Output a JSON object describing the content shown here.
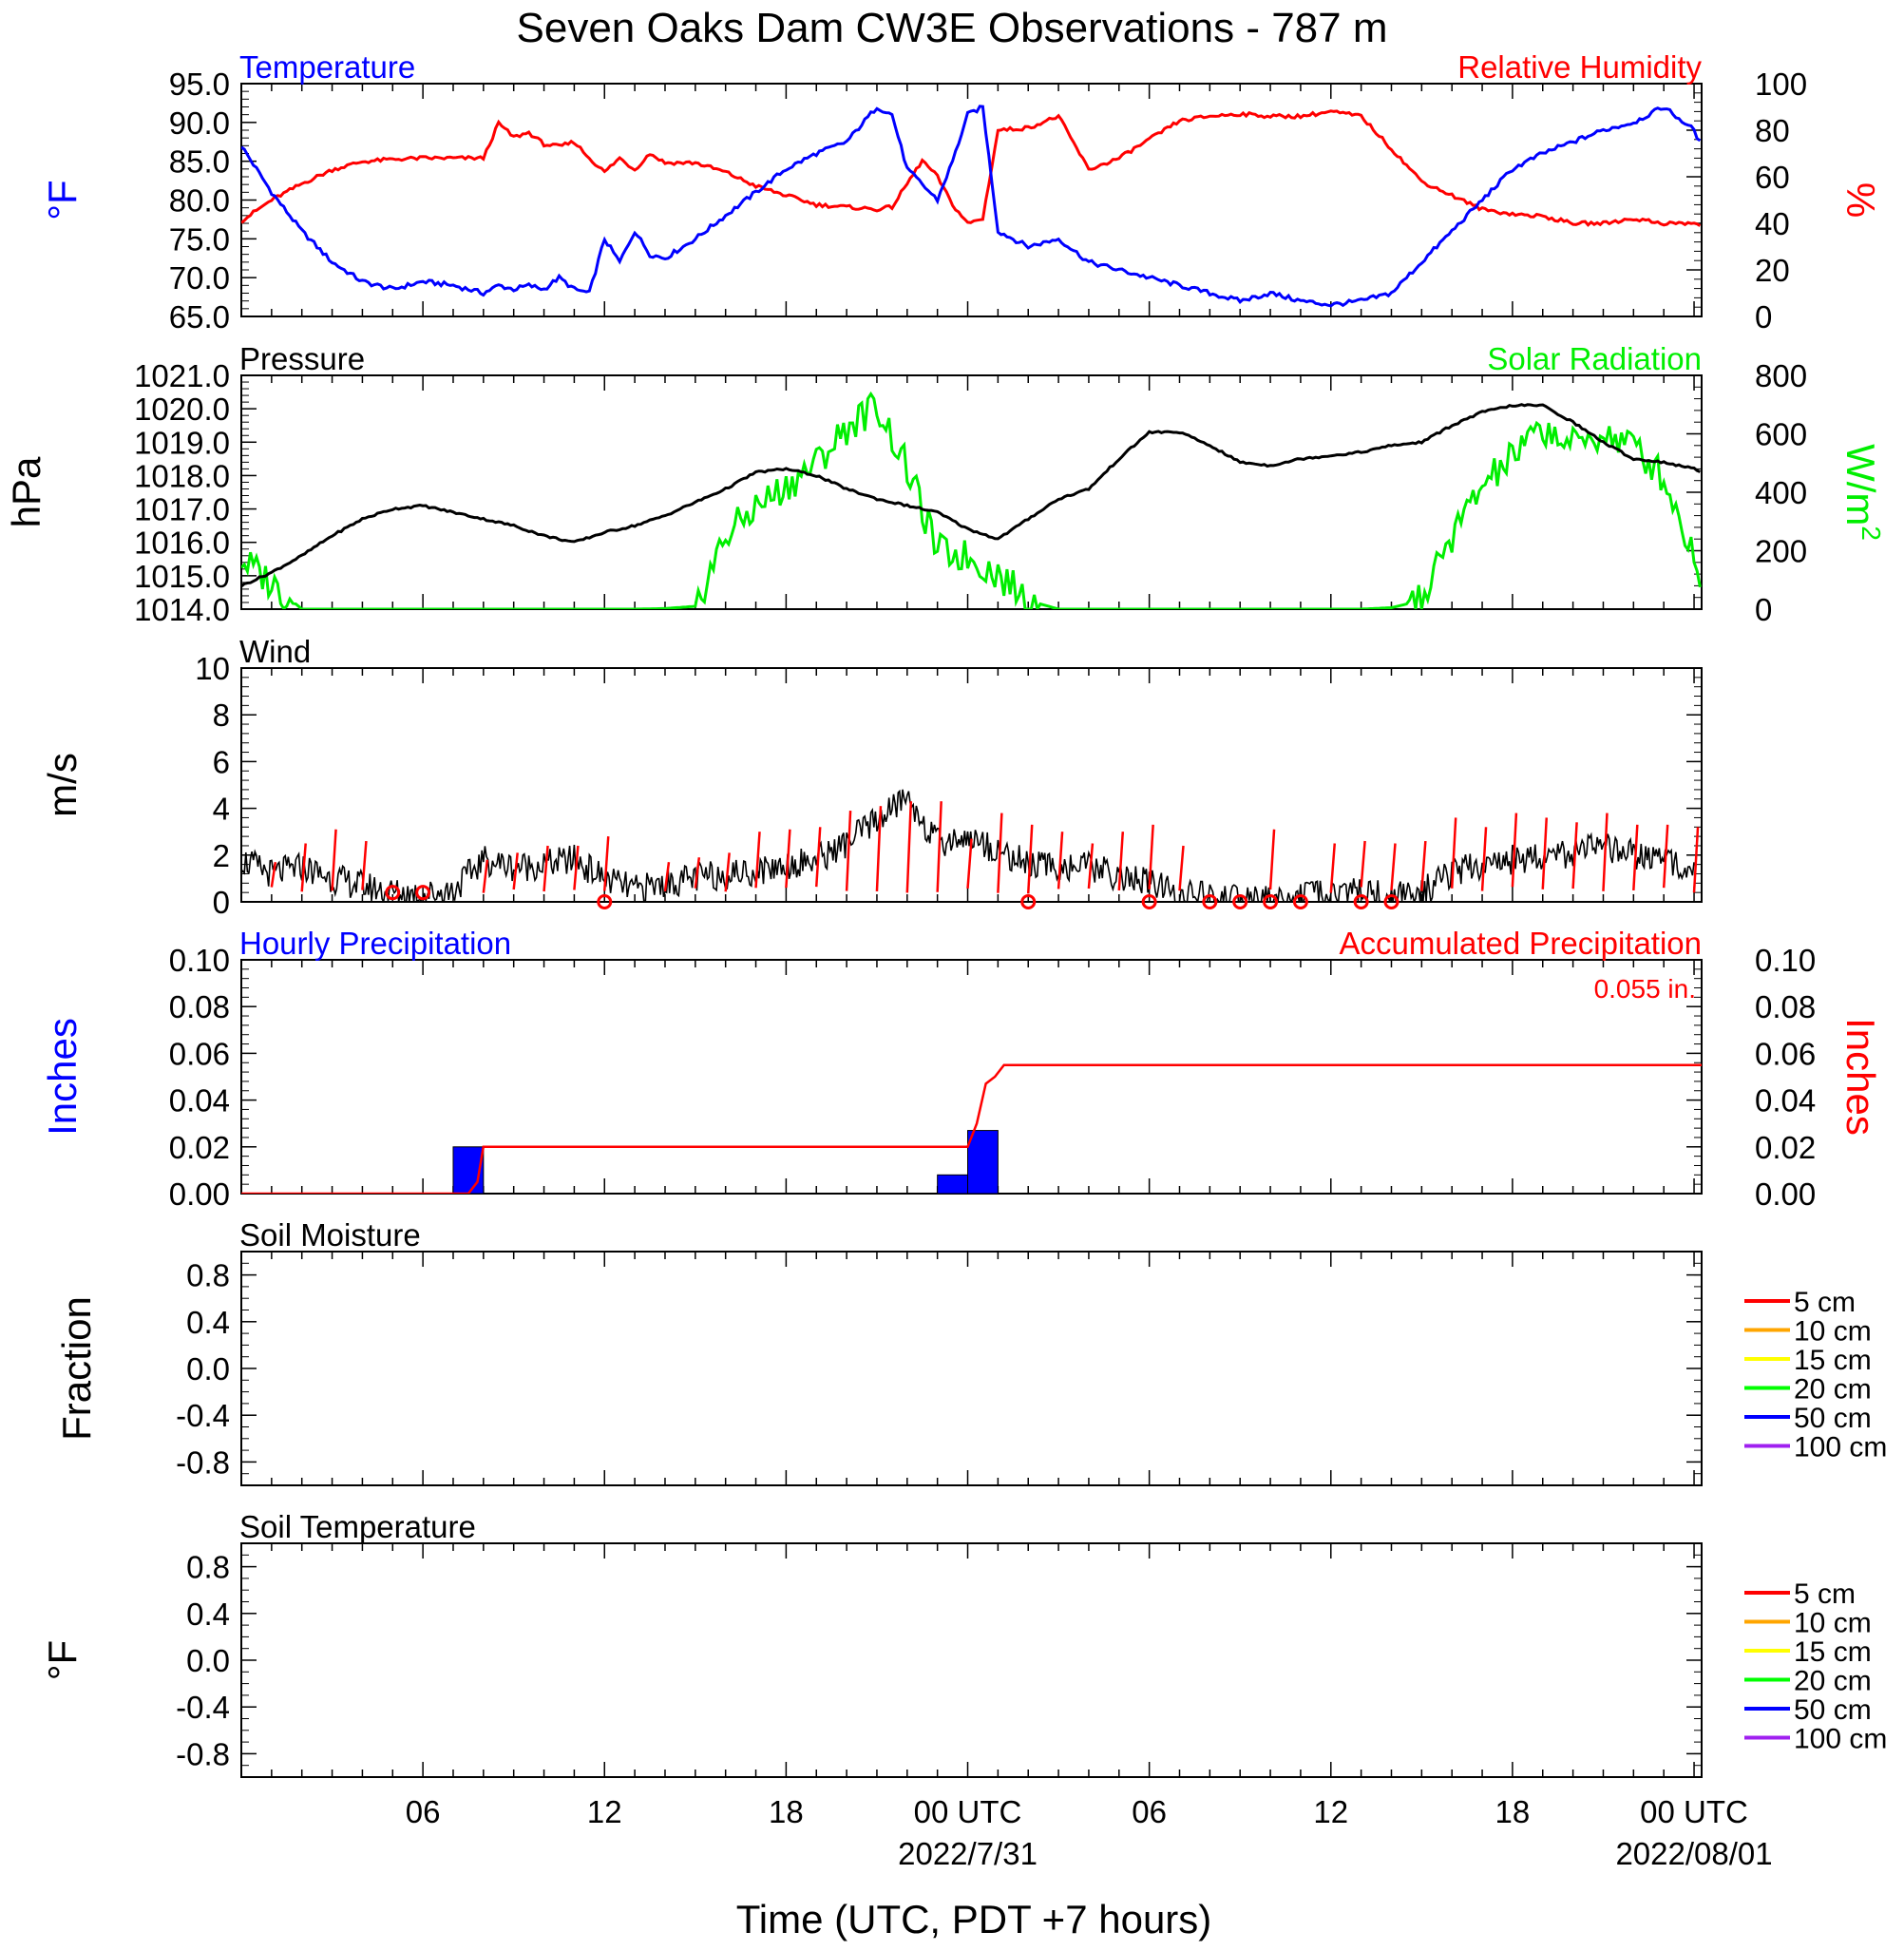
{
  "figure": {
    "title": "Seven Oaks Dam CW3E Observations - 787 m",
    "x_axis_title": "Time (UTC, PDT +7 hours)",
    "x_tick_labels": [
      "06",
      "12",
      "18",
      "00 UTC",
      "06",
      "12",
      "18",
      "00 UTC"
    ],
    "x_date_labels": [
      "2022/7/31",
      "2022/08/01"
    ]
  },
  "colors": {
    "temperature": "#0000ff",
    "humidity": "#ff0000",
    "pressure": "#000000",
    "solar": "#00ee00",
    "wind": "#000000",
    "gust": "#ff0000",
    "hourly_precip": "#0000ff",
    "accum_precip": "#ff0000"
  },
  "chart_data": [
    {
      "id": "temp_rh",
      "type": "line",
      "left_title": "Temperature",
      "right_title": "Relative Humidity",
      "ylabel_left": "°F",
      "ylabel_right": "%",
      "ylim_left": [
        65,
        95
      ],
      "ylim_right": [
        0,
        100
      ],
      "yticks_left": [
        "95.0",
        "90.0",
        "85.0",
        "80.0",
        "75.0",
        "70.0",
        "65.0"
      ],
      "yticks_right": [
        "100",
        "80",
        "60",
        "40",
        "20",
        "0"
      ],
      "x_hours": [
        0,
        1,
        2,
        3,
        4,
        5,
        6,
        7,
        8,
        8.5,
        9,
        9.5,
        10,
        10.5,
        11,
        11.5,
        12,
        12.5,
        13,
        13.5,
        14,
        15,
        16,
        17,
        18,
        19,
        20,
        21,
        21.5,
        22,
        22.5,
        23,
        23.5,
        24,
        24.5,
        25,
        26,
        27,
        28,
        29,
        30,
        31,
        32,
        33,
        34,
        35,
        36,
        37,
        38,
        39,
        40,
        41,
        42,
        43,
        44,
        45,
        46,
        47,
        48,
        48.25
      ],
      "series": [
        {
          "name": "Temperature",
          "axis": "left",
          "values": [
            87,
            81,
            76,
            72,
            69.5,
            68.5,
            69.5,
            69,
            68,
            69,
            68.5,
            69,
            68.5,
            70,
            68.5,
            68,
            75,
            72,
            76,
            73,
            72.5,
            75,
            78,
            81,
            84,
            86,
            87.5,
            92,
            91,
            84,
            82,
            80,
            85,
            91,
            92,
            76,
            74,
            75,
            72,
            71,
            70,
            69,
            68,
            67,
            68,
            67,
            66.5,
            67,
            68,
            72,
            76,
            80,
            84,
            86,
            87.5,
            89,
            90,
            92,
            89,
            87
          ]
        },
        {
          "name": "Relative Humidity",
          "axis": "right",
          "values": [
            41,
            50,
            57,
            63,
            66.5,
            67.5,
            68,
            68,
            68,
            83,
            77,
            79,
            74,
            73,
            75,
            68,
            62,
            68,
            63,
            70,
            66,
            66,
            62,
            56,
            52,
            48,
            47,
            46,
            47,
            57,
            67,
            60,
            48,
            40,
            42,
            80,
            81,
            86,
            63,
            68,
            76,
            84,
            86,
            87,
            86,
            86,
            88,
            86,
            72,
            58,
            52,
            46,
            44,
            43,
            40,
            40,
            42,
            40,
            40,
            39
          ]
        }
      ]
    },
    {
      "id": "pressure_solar",
      "type": "line",
      "left_title": "Pressure",
      "right_title": "Solar Radiation",
      "ylabel_left": "hPa",
      "ylabel_right": "W/m",
      "ylabel_right_sup": "2",
      "ylim_left": [
        1014,
        1021
      ],
      "ylim_right": [
        0,
        800
      ],
      "yticks_left": [
        "1021.0",
        "1020.0",
        "1019.0",
        "1018.0",
        "1017.0",
        "1016.0",
        "1015.0",
        "1014.0"
      ],
      "yticks_right": [
        "800",
        "600",
        "400",
        "200",
        "0"
      ],
      "x_hours": [
        0,
        1,
        2,
        3,
        4,
        5,
        6,
        7,
        8,
        9,
        10,
        11,
        12,
        13,
        14,
        15,
        16,
        17,
        18,
        19,
        20,
        21,
        22,
        23,
        24,
        25,
        26,
        27,
        28,
        29,
        30,
        31,
        32,
        33,
        34,
        35,
        36,
        37,
        38,
        39,
        40,
        41,
        42,
        43,
        44,
        45,
        46,
        47,
        48,
        48.25
      ],
      "series": [
        {
          "name": "Pressure",
          "axis": "left",
          "values": [
            1014.7,
            1015.1,
            1015.6,
            1016.2,
            1016.7,
            1017.0,
            1017.1,
            1016.9,
            1016.7,
            1016.5,
            1016.2,
            1016.0,
            1016.3,
            1016.5,
            1016.8,
            1017.2,
            1017.6,
            1018.1,
            1018.2,
            1018.0,
            1017.6,
            1017.3,
            1017.1,
            1016.9,
            1016.4,
            1016.1,
            1016.7,
            1017.3,
            1017.6,
            1018.5,
            1019.3,
            1019.3,
            1018.9,
            1018.4,
            1018.3,
            1018.5,
            1018.6,
            1018.7,
            1018.9,
            1019.0,
            1019.5,
            1019.9,
            1020.1,
            1020.1,
            1019.6,
            1019.0,
            1018.5,
            1018.4,
            1018.2,
            1018.1
          ]
        },
        {
          "name": "Solar Radiation",
          "axis": "right",
          "values": [
            170,
            90,
            0,
            0,
            0,
            0,
            0,
            0,
            0,
            0,
            0,
            0,
            0,
            0,
            2,
            10,
            250,
            350,
            420,
            500,
            620,
            700,
            480,
            200,
            180,
            120,
            30,
            0,
            0,
            0,
            0,
            0,
            0,
            0,
            0,
            0,
            0,
            0,
            5,
            30,
            250,
            420,
            520,
            620,
            560,
            600,
            560,
            450,
            180,
            100
          ]
        }
      ]
    },
    {
      "id": "wind",
      "type": "line",
      "left_title": "Wind",
      "ylabel_left": "m/s",
      "ylim_left": [
        0,
        10
      ],
      "yticks_left": [
        "10",
        "8",
        "6",
        "4",
        "2",
        "0"
      ],
      "x_hours": [
        0,
        1,
        2,
        3,
        4,
        5,
        6,
        7,
        8,
        9,
        10,
        11,
        12,
        13,
        14,
        15,
        16,
        17,
        18,
        19,
        20,
        21,
        22,
        23,
        24,
        25,
        26,
        27,
        28,
        29,
        30,
        31,
        32,
        33,
        34,
        35,
        36,
        37,
        38,
        39,
        40,
        41,
        42,
        43,
        44,
        45,
        46,
        47,
        48
      ],
      "series": [
        {
          "name": "Wind Speed",
          "axis": "left",
          "values": [
            1.8,
            1.2,
            1.5,
            1.0,
            0.7,
            0.4,
            0.3,
            0.5,
            1.8,
            1.5,
            1.6,
            1.8,
            1.0,
            0.5,
            0.8,
            1.0,
            1.2,
            1.3,
            1.6,
            1.8,
            2.5,
            3.5,
            4.5,
            2.5,
            2.8,
            2.2,
            1.6,
            1.5,
            1.5,
            1.1,
            0.8,
            0.3,
            0.2,
            0.1,
            0.1,
            0.2,
            0.3,
            0.5,
            0.2,
            0.4,
            1.2,
            1.6,
            1.8,
            2.0,
            2.1,
            2.3,
            2.0,
            1.8,
            1.5
          ]
        }
      ],
      "gust_hours": [
        1,
        2,
        3,
        4,
        8,
        9,
        10,
        11,
        12,
        14,
        15,
        16,
        17,
        18,
        19,
        20,
        21,
        22,
        23,
        24,
        25,
        26,
        27,
        28,
        29,
        30,
        31,
        34,
        36,
        37,
        38,
        39,
        40,
        41,
        42,
        43,
        44,
        45,
        46,
        47,
        48
      ],
      "gust_values": [
        1.7,
        2.5,
        3.1,
        2.6,
        1.8,
        2.1,
        2.4,
        2.4,
        2.8,
        1.7,
        1.9,
        2.1,
        3.0,
        3.1,
        3.2,
        3.9,
        4.1,
        4.3,
        4.3,
        2.7,
        3.8,
        3.3,
        3.0,
        2.5,
        3.0,
        3.3,
        2.4,
        3.1,
        2.5,
        2.6,
        2.5,
        2.6,
        3.6,
        3.2,
        3.8,
        3.6,
        3.4,
        3.8,
        3.3,
        3.3,
        3.2
      ],
      "calm_hours": [
        5,
        6,
        12,
        26,
        30,
        32,
        33,
        34,
        35,
        37,
        38
      ],
      "calm_values": [
        0.4,
        0.4,
        0,
        0,
        0,
        0,
        0,
        0,
        0,
        0,
        0
      ]
    },
    {
      "id": "precip",
      "type": "bar",
      "left_title": "Hourly Precipitation",
      "right_title": "Accumulated Precipitation",
      "total_label": "0.055 in.",
      "ylabel_left": "Inches",
      "ylabel_right": "Inches",
      "ylim_left": [
        0,
        0.1
      ],
      "ylim_right": [
        0,
        0.1
      ],
      "yticks_left": [
        "0.10",
        "0.08",
        "0.06",
        "0.04",
        "0.02",
        "0.00"
      ],
      "yticks_right": [
        "0.10",
        "0.08",
        "0.06",
        "0.04",
        "0.02",
        "0.00"
      ],
      "hourly_bars": [
        {
          "start": 7,
          "end": 8,
          "value": 0.02
        },
        {
          "start": 23,
          "end": 24,
          "value": 0.008
        },
        {
          "start": 24,
          "end": 25,
          "value": 0.027
        }
      ],
      "accum_x": [
        0,
        7.5,
        7.8,
        8.0,
        24.0,
        24.3,
        24.6,
        24.9,
        25.2,
        48.25
      ],
      "accum_y": [
        0,
        0,
        0.005,
        0.02,
        0.02,
        0.03,
        0.047,
        0.05,
        0.055,
        0.055
      ]
    },
    {
      "id": "soil_moisture",
      "type": "line",
      "left_title": "Soil Moisture",
      "ylabel_left": "Fraction",
      "ylim_left": [
        -1,
        1
      ],
      "yticks_left": [
        "0.8",
        "0.4",
        "0.0",
        "-0.4",
        "-0.8"
      ],
      "legend": [
        "5 cm",
        "10 cm",
        "15 cm",
        "20 cm",
        "50 cm",
        "100 cm"
      ],
      "legend_colors": [
        "#ff0000",
        "#ffa500",
        "#ffff00",
        "#00ff00",
        "#0000ff",
        "#a020f0"
      ],
      "series": []
    },
    {
      "id": "soil_temp",
      "type": "line",
      "left_title": "Soil Temperature",
      "ylabel_left": "°F",
      "ylim_left": [
        -1,
        1
      ],
      "yticks_left": [
        "0.8",
        "0.4",
        "0.0",
        "-0.4",
        "-0.8"
      ],
      "legend": [
        "5 cm",
        "10 cm",
        "15 cm",
        "20 cm",
        "50 cm",
        "100 cm"
      ],
      "legend_colors": [
        "#ff0000",
        "#ffa500",
        "#ffff00",
        "#00ff00",
        "#0000ff",
        "#a020f0"
      ],
      "series": []
    }
  ]
}
